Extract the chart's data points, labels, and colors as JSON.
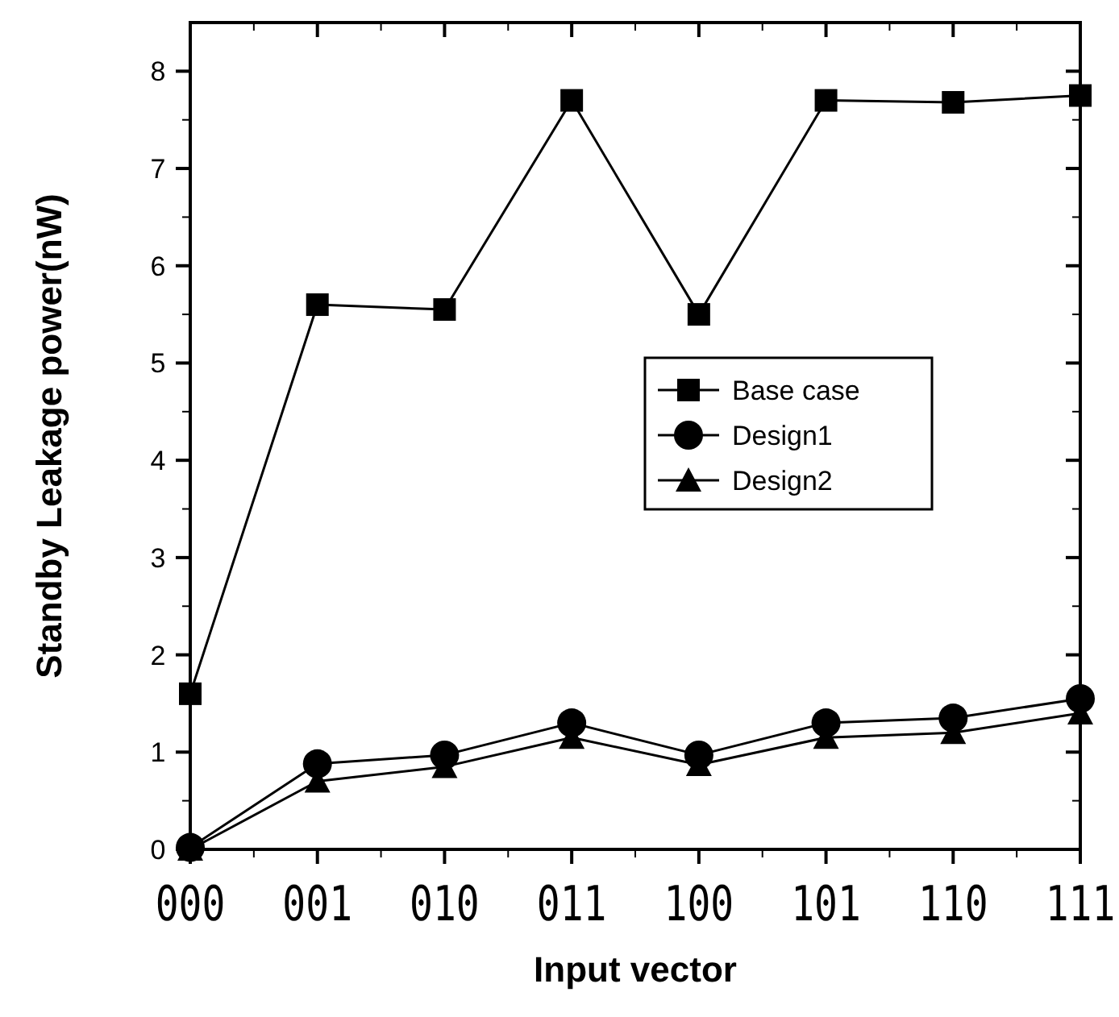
{
  "chart_data": {
    "type": "line",
    "xlabel": "Input vector",
    "ylabel": "Standby Leakage power(nW)",
    "categories": [
      "000",
      "001",
      "010",
      "011",
      "100",
      "101",
      "110",
      "111"
    ],
    "ylim": [
      0,
      8.5
    ],
    "yticks": [
      0,
      1,
      2,
      3,
      4,
      5,
      6,
      7,
      8
    ],
    "grid": false,
    "legend": "right",
    "line_style": "solid",
    "series": [
      {
        "name": "Base case",
        "color": "#000000",
        "marker": "square",
        "values": [
          1.6,
          5.6,
          5.55,
          7.7,
          5.5,
          7.7,
          7.68,
          7.75
        ]
      },
      {
        "name": "Design1",
        "color": "#000000",
        "marker": "circle",
        "values": [
          0.02,
          0.88,
          0.97,
          1.3,
          0.97,
          1.3,
          1.35,
          1.55
        ]
      },
      {
        "name": "Design2",
        "color": "#000000",
        "marker": "triangle",
        "values": [
          0,
          0.7,
          0.85,
          1.15,
          0.87,
          1.15,
          1.2,
          1.4
        ]
      }
    ]
  }
}
